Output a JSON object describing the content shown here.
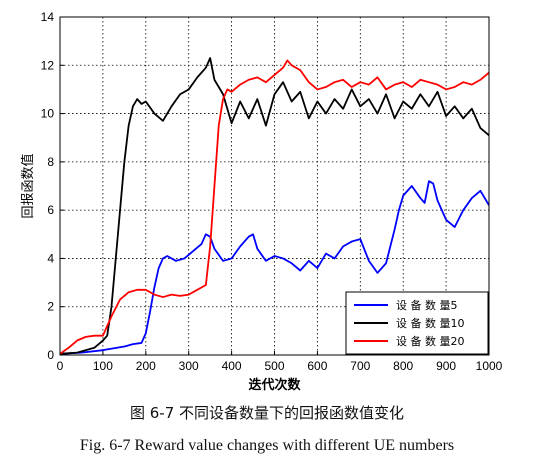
{
  "caption": {
    "cn": "图 6-7  不同设备数量下的回报函数值变化",
    "en": "Fig. 6-7 Reward value changes with different UE numbers"
  },
  "chart_data": {
    "type": "line",
    "xlabel": "迭代次数",
    "ylabel": "回报函数值",
    "xlim": [
      0,
      1000
    ],
    "ylim": [
      0,
      14
    ],
    "xticks": [
      0,
      100,
      200,
      300,
      400,
      500,
      600,
      700,
      800,
      900,
      1000
    ],
    "yticks": [
      0,
      2,
      4,
      6,
      8,
      10,
      12,
      14
    ],
    "grid": true,
    "legend_position": "bottom-right",
    "series": [
      {
        "name": "设 备 数 量5",
        "color": "#0000ff",
        "x": [
          0,
          50,
          100,
          150,
          170,
          190,
          200,
          210,
          220,
          230,
          240,
          250,
          270,
          290,
          310,
          330,
          340,
          350,
          360,
          380,
          400,
          420,
          440,
          450,
          460,
          480,
          500,
          520,
          540,
          560,
          580,
          600,
          620,
          640,
          660,
          680,
          700,
          720,
          740,
          760,
          780,
          790,
          800,
          820,
          840,
          850,
          860,
          870,
          880,
          900,
          920,
          940,
          960,
          980,
          1000
        ],
        "y": [
          0.05,
          0.1,
          0.2,
          0.35,
          0.45,
          0.5,
          0.9,
          1.8,
          2.8,
          3.6,
          4.0,
          4.1,
          3.9,
          4.0,
          4.3,
          4.6,
          5.0,
          4.9,
          4.4,
          3.9,
          4.0,
          4.5,
          4.9,
          5.0,
          4.4,
          3.9,
          4.1,
          4.0,
          3.8,
          3.5,
          3.9,
          3.6,
          4.2,
          4.0,
          4.5,
          4.7,
          4.8,
          3.9,
          3.4,
          3.8,
          5.2,
          6.0,
          6.6,
          7.0,
          6.5,
          6.3,
          7.2,
          7.1,
          6.4,
          5.6,
          5.3,
          6.0,
          6.5,
          6.8,
          6.2
        ]
      },
      {
        "name": "设 备 数 量10",
        "color": "#000000",
        "x": [
          0,
          40,
          80,
          100,
          110,
          120,
          130,
          140,
          150,
          160,
          170,
          180,
          190,
          200,
          220,
          240,
          260,
          280,
          300,
          320,
          340,
          350,
          360,
          380,
          400,
          420,
          440,
          460,
          480,
          500,
          520,
          540,
          560,
          580,
          600,
          620,
          640,
          660,
          680,
          700,
          720,
          740,
          760,
          780,
          800,
          820,
          840,
          860,
          880,
          900,
          920,
          940,
          960,
          980,
          1000
        ],
        "y": [
          0.05,
          0.1,
          0.3,
          0.6,
          0.8,
          2.0,
          4.0,
          6.0,
          8.0,
          9.5,
          10.3,
          10.6,
          10.4,
          10.5,
          10.0,
          9.7,
          10.3,
          10.8,
          11.0,
          11.5,
          11.9,
          12.3,
          11.4,
          10.8,
          9.6,
          10.5,
          9.8,
          10.6,
          9.5,
          10.8,
          11.3,
          10.5,
          10.9,
          9.8,
          10.5,
          10.0,
          10.6,
          10.2,
          11.0,
          10.3,
          10.6,
          10.0,
          10.8,
          9.8,
          10.5,
          10.2,
          10.8,
          10.3,
          10.9,
          9.9,
          10.3,
          9.8,
          10.2,
          9.4,
          9.1
        ]
      },
      {
        "name": "设 备 数 量20",
        "color": "#ff0000",
        "x": [
          0,
          20,
          40,
          60,
          80,
          100,
          120,
          140,
          160,
          180,
          200,
          220,
          240,
          260,
          280,
          300,
          320,
          340,
          350,
          360,
          370,
          380,
          390,
          400,
          420,
          440,
          460,
          480,
          500,
          520,
          530,
          540,
          560,
          580,
          600,
          620,
          640,
          660,
          680,
          700,
          720,
          740,
          760,
          780,
          800,
          820,
          840,
          860,
          880,
          900,
          920,
          940,
          960,
          980,
          1000
        ],
        "y": [
          0.05,
          0.3,
          0.6,
          0.75,
          0.8,
          0.8,
          1.6,
          2.3,
          2.6,
          2.7,
          2.7,
          2.5,
          2.4,
          2.5,
          2.45,
          2.5,
          2.7,
          2.9,
          4.5,
          7.0,
          9.5,
          10.6,
          11.0,
          10.9,
          11.2,
          11.4,
          11.5,
          11.3,
          11.6,
          11.9,
          12.2,
          12.0,
          11.8,
          11.3,
          11.0,
          11.1,
          11.3,
          11.4,
          11.1,
          11.3,
          11.2,
          11.5,
          11.0,
          11.2,
          11.3,
          11.1,
          11.4,
          11.3,
          11.2,
          11.0,
          11.1,
          11.3,
          11.2,
          11.4,
          11.7
        ]
      }
    ]
  }
}
